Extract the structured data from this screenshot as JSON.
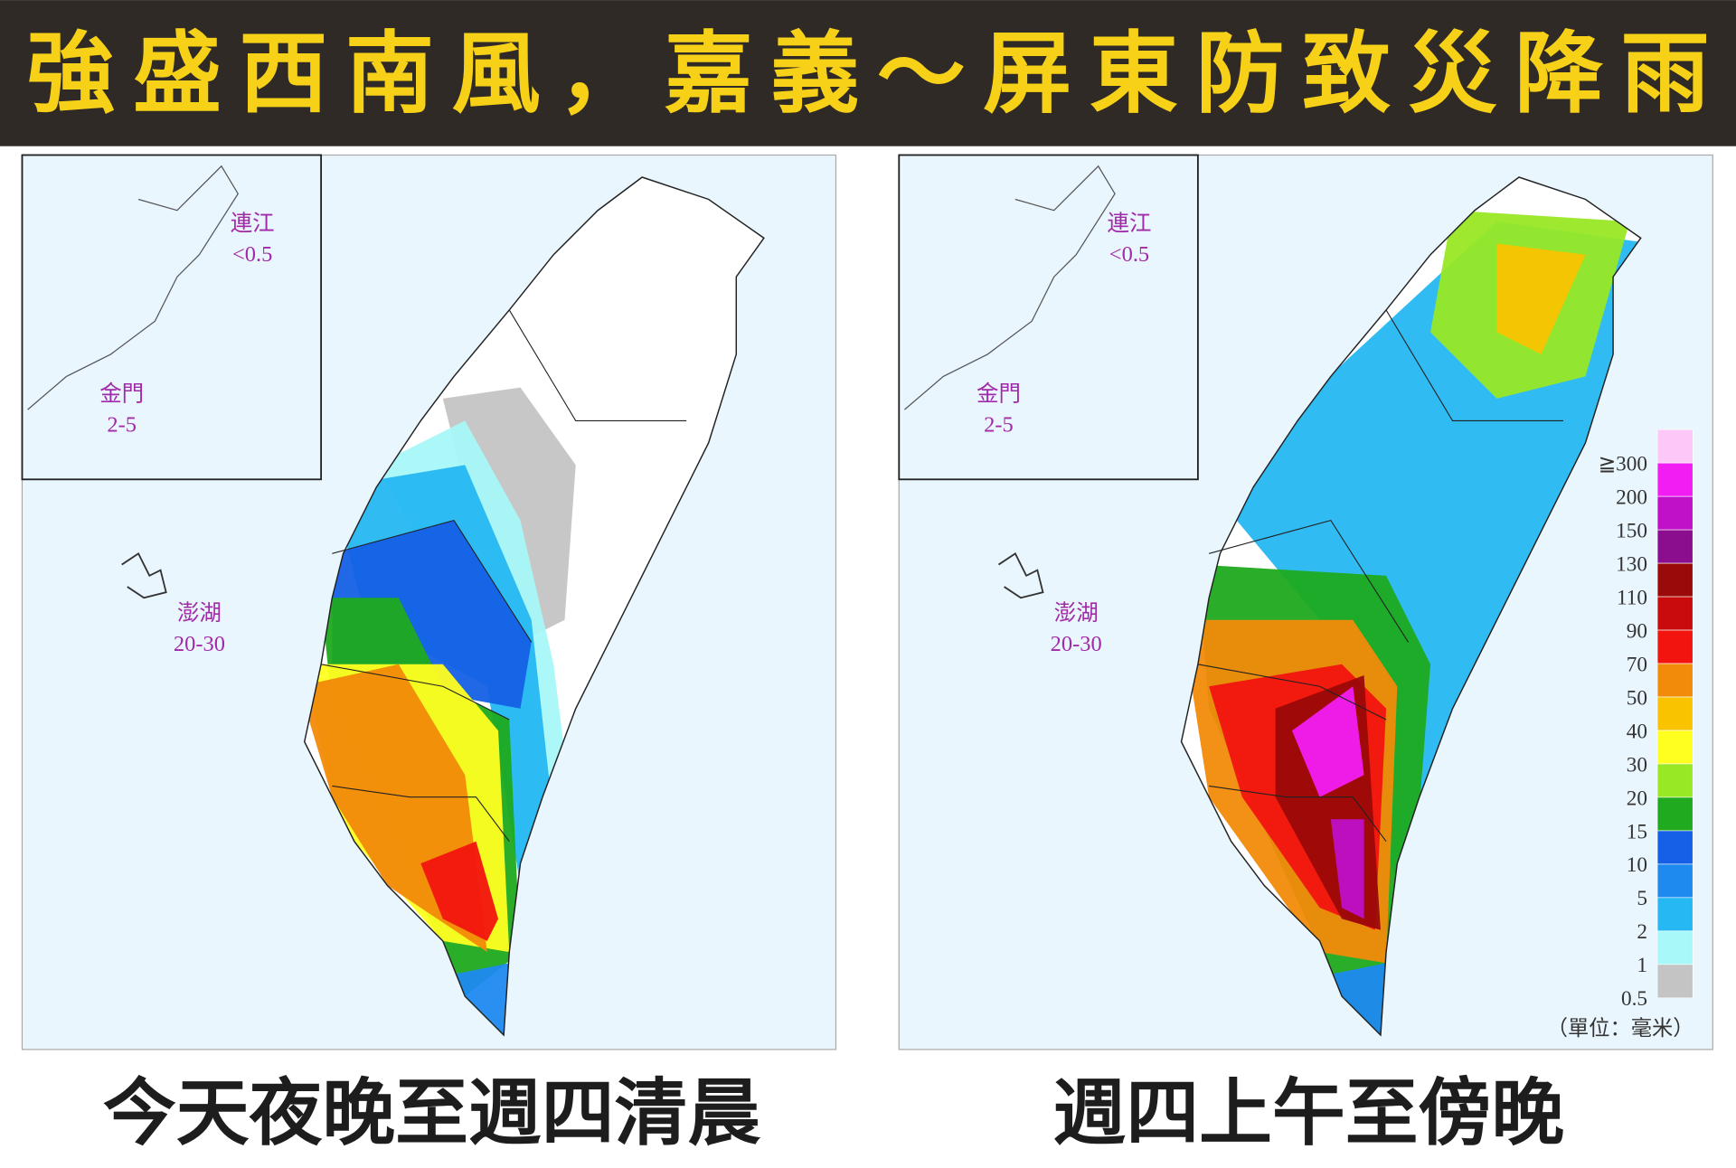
{
  "header": {
    "title": "強盛西南風，嘉義～屏東防致災降雨"
  },
  "panels": [
    {
      "caption": "今天夜晚至週四清晨",
      "islands": [
        {
          "name": "連江",
          "value": "<0.5"
        },
        {
          "name": "金門",
          "value": "2-5"
        },
        {
          "name": "澎湖",
          "value": "20-30"
        }
      ]
    },
    {
      "caption": "週四上午至傍晚",
      "islands": [
        {
          "name": "連江",
          "value": "<0.5"
        },
        {
          "name": "金門",
          "value": "2-5"
        },
        {
          "name": "澎湖",
          "value": "20-30"
        }
      ]
    }
  ],
  "legend": {
    "labels": [
      "≧300",
      "200",
      "150",
      "130",
      "110",
      "90",
      "70",
      "50",
      "40",
      "30",
      "20",
      "15",
      "10",
      "5",
      "2",
      "1",
      "0.5"
    ],
    "colors": [
      "#fbc8f7",
      "#f21df2",
      "#c010c8",
      "#8b0e8e",
      "#9a0a0a",
      "#c90b0b",
      "#f2140f",
      "#f28a0a",
      "#f9c300",
      "#ffff20",
      "#99e825",
      "#1faa1f",
      "#1560e6",
      "#1e8af0",
      "#25b8f2",
      "#a8f8f8",
      "#c4c4c4"
    ],
    "unit": "（單位：毫米）"
  }
}
